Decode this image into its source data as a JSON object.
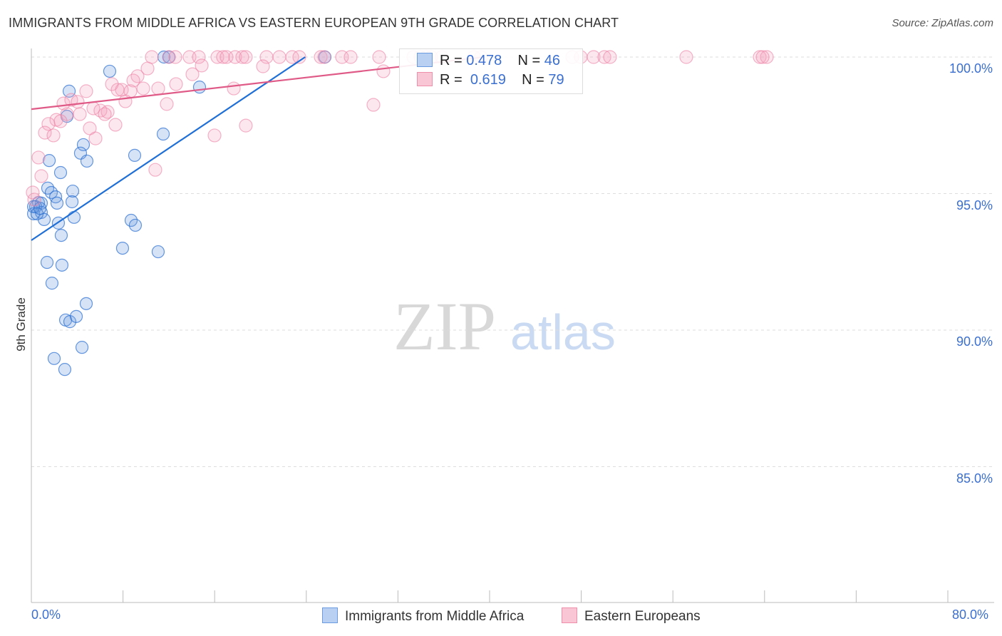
{
  "chart_data": {
    "type": "scatter",
    "title": "IMMIGRANTS FROM MIDDLE AFRICA VS EASTERN EUROPEAN 9TH GRADE CORRELATION CHART",
    "source": "Source: ZipAtlas.com",
    "xlabel": "",
    "ylabel": "9th Grade",
    "xlim": [
      0,
      80
    ],
    "ylim": [
      80,
      100.3
    ],
    "x_tick_labels": [
      "0.0%",
      "80.0%"
    ],
    "y_ticks": [
      100,
      95,
      90,
      85
    ],
    "y_tick_labels": [
      "100.0%",
      "95.0%",
      "90.0%",
      "85.0%"
    ],
    "grid": true,
    "watermark": {
      "zip": "ZIP",
      "atlas": "atlas"
    },
    "series": [
      {
        "name": "Immigrants from Middle Africa",
        "color": "#6b9be0",
        "line_color": "#1f6fd6",
        "R": "0.478",
        "N": "46",
        "trend": [
          [
            0,
            93.29
          ],
          [
            23.9,
            100
          ]
        ],
        "points": [
          [
            6.84,
            99.48
          ],
          [
            3.3,
            98.75
          ],
          [
            14.68,
            98.9
          ],
          [
            3.11,
            97.83
          ],
          [
            11.51,
            97.18
          ],
          [
            4.54,
            96.79
          ],
          [
            4.29,
            96.48
          ],
          [
            4.85,
            96.19
          ],
          [
            1.56,
            96.21
          ],
          [
            9.02,
            96.4
          ],
          [
            2.55,
            95.77
          ],
          [
            1.43,
            95.2
          ],
          [
            1.74,
            95.04
          ],
          [
            3.61,
            95.09
          ],
          [
            2.12,
            94.88
          ],
          [
            3.55,
            94.7
          ],
          [
            2.24,
            94.65
          ],
          [
            0.62,
            94.67
          ],
          [
            0.87,
            94.65
          ],
          [
            0.37,
            94.52
          ],
          [
            0.19,
            94.26
          ],
          [
            0.87,
            94.31
          ],
          [
            1.12,
            94.05
          ],
          [
            3.73,
            94.13
          ],
          [
            2.36,
            93.92
          ],
          [
            8.71,
            94.02
          ],
          [
            9.08,
            93.84
          ],
          [
            2.61,
            93.47
          ],
          [
            7.96,
            93.0
          ],
          [
            11.07,
            92.87
          ],
          [
            1.37,
            92.48
          ],
          [
            2.67,
            92.38
          ],
          [
            1.8,
            91.72
          ],
          [
            4.79,
            90.97
          ],
          [
            2.99,
            90.37
          ],
          [
            3.36,
            90.31
          ],
          [
            3.92,
            90.5
          ],
          [
            4.42,
            89.37
          ],
          [
            1.99,
            88.96
          ],
          [
            2.92,
            88.56
          ],
          [
            11.57,
            100
          ],
          [
            12.01,
            100
          ],
          [
            25.63,
            100
          ],
          [
            0.19,
            94.52
          ],
          [
            0.5,
            94.26
          ],
          [
            0.75,
            94.46
          ]
        ]
      },
      {
        "name": "Eastern Europeans",
        "color": "#f08fac",
        "line_color": "#e05a87",
        "R": "0.619",
        "N": "79",
        "trend": [
          [
            0,
            98.09
          ],
          [
            39.5,
            100
          ]
        ],
        "points": [
          [
            10.51,
            100
          ],
          [
            12.01,
            100
          ],
          [
            12.57,
            100
          ],
          [
            13.81,
            100
          ],
          [
            14.62,
            100
          ],
          [
            16.24,
            100
          ],
          [
            16.73,
            100
          ],
          [
            17.04,
            100
          ],
          [
            17.79,
            100
          ],
          [
            18.41,
            100
          ],
          [
            18.72,
            100
          ],
          [
            20.53,
            100
          ],
          [
            21.65,
            100
          ],
          [
            22.77,
            100
          ],
          [
            23.39,
            100
          ],
          [
            25.26,
            100
          ],
          [
            25.57,
            100
          ],
          [
            27.12,
            100
          ],
          [
            27.87,
            100
          ],
          [
            30.36,
            100
          ],
          [
            33.96,
            100
          ],
          [
            34.9,
            100
          ],
          [
            35.83,
            100
          ],
          [
            39.25,
            100
          ],
          [
            47.22,
            100
          ],
          [
            49.08,
            100
          ],
          [
            50.02,
            100
          ],
          [
            50.51,
            100
          ],
          [
            57.17,
            100
          ],
          [
            63.58,
            100
          ],
          [
            64.2,
            100
          ],
          [
            33.34,
            100
          ],
          [
            34.46,
            100
          ],
          [
            38.63,
            100
          ],
          [
            47.96,
            100
          ],
          [
            63.83,
            100
          ],
          [
            10.14,
            99.58
          ],
          [
            9.27,
            99.3
          ],
          [
            8.9,
            99.14
          ],
          [
            14.06,
            99.37
          ],
          [
            14.87,
            99.69
          ],
          [
            20.22,
            99.66
          ],
          [
            30.73,
            99.48
          ],
          [
            7.03,
            99.01
          ],
          [
            7.9,
            98.8
          ],
          [
            7.53,
            98.8
          ],
          [
            8.65,
            98.75
          ],
          [
            9.77,
            98.85
          ],
          [
            12.63,
            99.01
          ],
          [
            11.07,
            98.85
          ],
          [
            17.67,
            98.85
          ],
          [
            4.79,
            98.75
          ],
          [
            2.8,
            98.3
          ],
          [
            3.48,
            98.43
          ],
          [
            4.04,
            98.36
          ],
          [
            8.21,
            98.38
          ],
          [
            11.82,
            98.28
          ],
          [
            5.41,
            98.12
          ],
          [
            6.03,
            98.04
          ],
          [
            6.66,
            97.99
          ],
          [
            6.41,
            97.91
          ],
          [
            3.11,
            97.91
          ],
          [
            2.18,
            97.7
          ],
          [
            2.55,
            97.65
          ],
          [
            1.49,
            97.55
          ],
          [
            4.23,
            97.91
          ],
          [
            1.18,
            97.23
          ],
          [
            1.93,
            97.13
          ],
          [
            5.1,
            97.39
          ],
          [
            7.34,
            97.52
          ],
          [
            5.6,
            97.02
          ],
          [
            15.99,
            97.13
          ],
          [
            18.72,
            97.49
          ],
          [
            10.82,
            95.87
          ],
          [
            29.86,
            98.25
          ],
          [
            0.62,
            96.32
          ],
          [
            0.87,
            95.64
          ],
          [
            0.25,
            94.78
          ],
          [
            0.12,
            95.04
          ]
        ]
      }
    ],
    "legend_placement": "top-center / bottom"
  },
  "legend": {
    "r_label": "R =",
    "n_label": "N ="
  }
}
